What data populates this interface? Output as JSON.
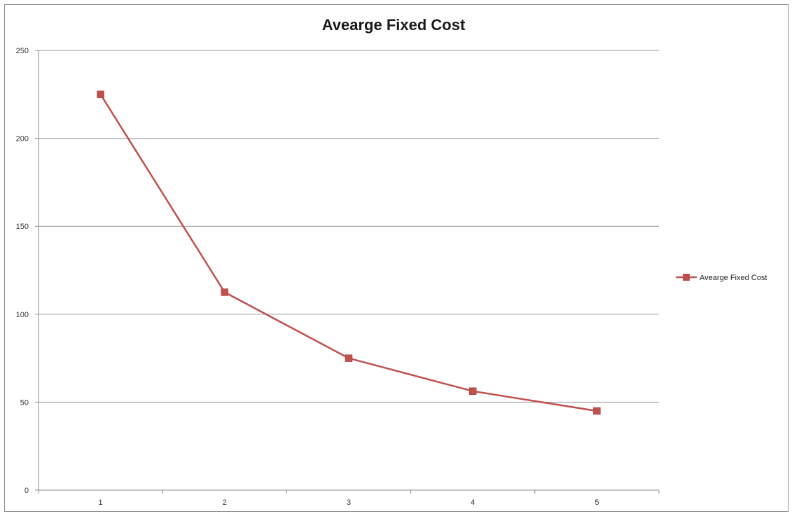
{
  "chart_data": {
    "type": "line",
    "title": "Avearge Fixed Cost",
    "xlabel": "",
    "ylabel": "",
    "categories": [
      "1",
      "2",
      "3",
      "4",
      "5"
    ],
    "series": [
      {
        "name": "Avearge Fixed Cost",
        "values": [
          225,
          112.5,
          75,
          56.25,
          45
        ],
        "color": "#c0504d",
        "marker": "square"
      }
    ],
    "ylim": [
      0,
      250
    ],
    "yticks": [
      0,
      50,
      100,
      150,
      200,
      250
    ],
    "grid": "horizontal",
    "legend": "right"
  }
}
